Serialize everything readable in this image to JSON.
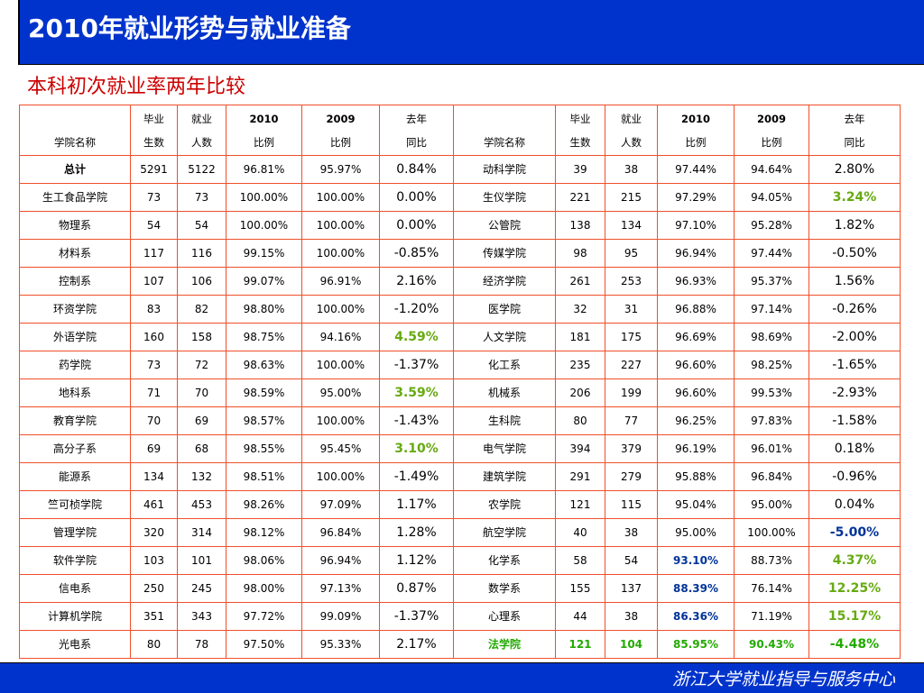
{
  "slide": {
    "title": "2010年就业形势与就业准备",
    "subtitle": "本科初次就业率两年比较",
    "footer": "浙江大学就业指导与服务中心"
  },
  "table": {
    "headers": {
      "left": [
        [
          "学院名称"
        ],
        [
          "毕业",
          "生数"
        ],
        [
          "就业",
          "人数"
        ],
        [
          "2010",
          "比例"
        ],
        [
          "2009",
          "比例"
        ],
        [
          "去年",
          "同比"
        ]
      ],
      "right": [
        [
          "学院名称"
        ],
        [
          "毕业",
          "生数"
        ],
        [
          "就业",
          "人数"
        ],
        [
          "2010",
          "比例"
        ],
        [
          "2009",
          "比例"
        ],
        [
          "去年",
          "同比"
        ]
      ]
    },
    "rows": [
      {
        "left": [
          "总计",
          "5291",
          "5122",
          "96.81%",
          "95.97%",
          "0.84%"
        ],
        "right": [
          "动科学院",
          "39",
          "38",
          "97.44%",
          "94.64%",
          "2.80%"
        ]
      },
      {
        "left": [
          "生工食品学院",
          "73",
          "73",
          "100.00%",
          "100.00%",
          "0.00%"
        ],
        "right": [
          "生仪学院",
          "221",
          "215",
          "97.29%",
          "94.05%",
          "3.24%"
        ]
      },
      {
        "left": [
          "物理系",
          "54",
          "54",
          "100.00%",
          "100.00%",
          "0.00%"
        ],
        "right": [
          "公管院",
          "138",
          "134",
          "97.10%",
          "95.28%",
          "1.82%"
        ]
      },
      {
        "left": [
          "材料系",
          "117",
          "116",
          "99.15%",
          "100.00%",
          "-0.85%"
        ],
        "right": [
          "传媒学院",
          "98",
          "95",
          "96.94%",
          "97.44%",
          "-0.50%"
        ]
      },
      {
        "left": [
          "控制系",
          "107",
          "106",
          "99.07%",
          "96.91%",
          "2.16%"
        ],
        "right": [
          "经济学院",
          "261",
          "253",
          "96.93%",
          "95.37%",
          "1.56%"
        ]
      },
      {
        "left": [
          "环资学院",
          "83",
          "82",
          "98.80%",
          "100.00%",
          "-1.20%"
        ],
        "right": [
          "医学院",
          "32",
          "31",
          "96.88%",
          "97.14%",
          "-0.26%"
        ]
      },
      {
        "left": [
          "外语学院",
          "160",
          "158",
          "98.75%",
          "94.16%",
          "4.59%"
        ],
        "right": [
          "人文学院",
          "181",
          "175",
          "96.69%",
          "98.69%",
          "-2.00%"
        ]
      },
      {
        "left": [
          "药学院",
          "73",
          "72",
          "98.63%",
          "100.00%",
          "-1.37%"
        ],
        "right": [
          "化工系",
          "235",
          "227",
          "96.60%",
          "98.25%",
          "-1.65%"
        ]
      },
      {
        "left": [
          "地科系",
          "71",
          "70",
          "98.59%",
          "95.00%",
          "3.59%"
        ],
        "right": [
          "机械系",
          "206",
          "199",
          "96.60%",
          "99.53%",
          "-2.93%"
        ]
      },
      {
        "left": [
          "教育学院",
          "70",
          "69",
          "98.57%",
          "100.00%",
          "-1.43%"
        ],
        "right": [
          "生科院",
          "80",
          "77",
          "96.25%",
          "97.83%",
          "-1.58%"
        ]
      },
      {
        "left": [
          "高分子系",
          "69",
          "68",
          "98.55%",
          "95.45%",
          "3.10%"
        ],
        "right": [
          "电气学院",
          "394",
          "379",
          "96.19%",
          "96.01%",
          "0.18%"
        ]
      },
      {
        "left": [
          "能源系",
          "134",
          "132",
          "98.51%",
          "100.00%",
          "-1.49%"
        ],
        "right": [
          "建筑学院",
          "291",
          "279",
          "95.88%",
          "96.84%",
          "-0.96%"
        ]
      },
      {
        "left": [
          "竺可桢学院",
          "461",
          "453",
          "98.26%",
          "97.09%",
          "1.17%"
        ],
        "right": [
          "农学院",
          "121",
          "115",
          "95.04%",
          "95.00%",
          "0.04%"
        ]
      },
      {
        "left": [
          "管理学院",
          "320",
          "314",
          "98.12%",
          "96.84%",
          "1.28%"
        ],
        "right": [
          "航空学院",
          "40",
          "38",
          "95.00%",
          "100.00%",
          "-5.00%"
        ]
      },
      {
        "left": [
          "软件学院",
          "103",
          "101",
          "98.06%",
          "96.94%",
          "1.12%"
        ],
        "right": [
          "化学系",
          "58",
          "54",
          "93.10%",
          "88.73%",
          "4.37%"
        ]
      },
      {
        "left": [
          "信电系",
          "250",
          "245",
          "98.00%",
          "97.13%",
          "0.87%"
        ],
        "right": [
          "数学系",
          "155",
          "137",
          "88.39%",
          "76.14%",
          "12.25%"
        ]
      },
      {
        "left": [
          "计算机学院",
          "351",
          "343",
          "97.72%",
          "99.09%",
          "-1.37%"
        ],
        "right": [
          "心理系",
          "44",
          "38",
          "86.36%",
          "71.19%",
          "15.17%"
        ]
      },
      {
        "left": [
          "光电系",
          "80",
          "78",
          "97.50%",
          "95.33%",
          "2.17%"
        ],
        "right": [
          "法学院",
          "121",
          "104",
          "85.95%",
          "90.43%",
          "-4.48%"
        ]
      }
    ]
  },
  "colors": {
    "header_bg": "#0033cc",
    "subtitle": "#cc0000",
    "grid_border": "#f0502a",
    "highlight_green": "#66aa11",
    "highlight_blue": "#003399"
  }
}
